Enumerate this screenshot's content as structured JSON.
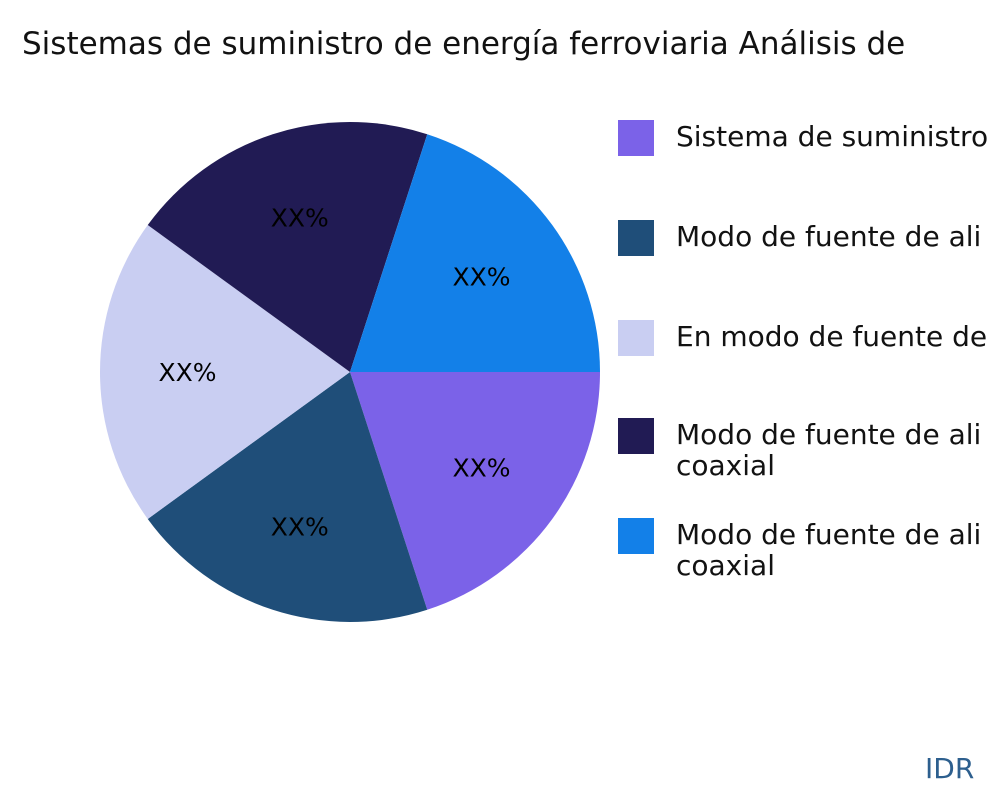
{
  "page": {
    "background": "#ffffff"
  },
  "title": "Sistemas de suministro de energía ferroviaria Análisis de",
  "watermark": "IDR",
  "chart_data": {
    "type": "pie",
    "title": "Sistemas de suministro de energía ferroviaria Análisis de",
    "values_hidden_as": "XX%",
    "start_angle_deg": 0,
    "direction": "clockwise",
    "legend_position": "right",
    "series": [
      {
        "label": "Sistema de suministro",
        "value": 20,
        "pct_label": "XX%",
        "color": "#7b62e8"
      },
      {
        "label": "Modo de fuente de ali",
        "value": 20,
        "pct_label": "XX%",
        "color": "#1f4e79"
      },
      {
        "label": "En modo de fuente de",
        "value": 20,
        "pct_label": "XX%",
        "color": "#c9cef2"
      },
      {
        "label": "Modo de fuente de ali\ncoaxial",
        "value": 20,
        "pct_label": "XX%",
        "color": "#211b54"
      },
      {
        "label": "Modo de fuente de ali\ncoaxial",
        "value": 20,
        "pct_label": "XX%",
        "color": "#1380e8"
      }
    ]
  }
}
